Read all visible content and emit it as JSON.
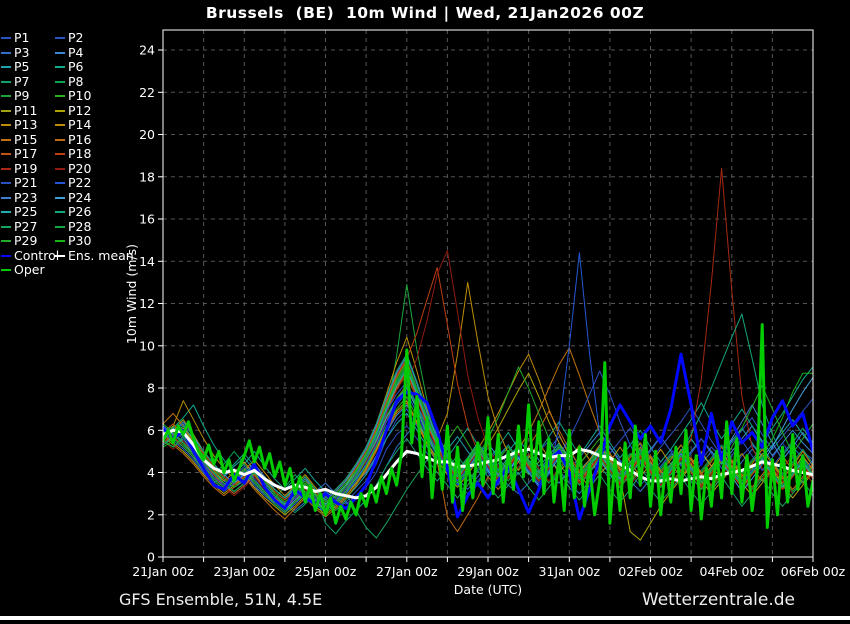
{
  "title": "Brussels  (BE)  10m Wind | Wed, 21Jan2026 00Z",
  "footer": {
    "left": "GFS Ensemble, 51N, 4.5E",
    "right": "Wetterzentrale.de"
  },
  "colors": {
    "background": "#000000",
    "grid": "#555555",
    "axis": "#ffffff",
    "control": "#0008ff",
    "mean": "#ffffff",
    "oper": "#00cc00"
  },
  "chart_data": {
    "type": "line",
    "title": "Brussels  (BE)  10m Wind | Wed, 21Jan2026 00Z",
    "x_axis_title": "Date (UTC)",
    "y_axis_title": "10m Wind (m/s)",
    "ylim": [
      0,
      24
    ],
    "y_ticks": [
      0,
      2,
      4,
      6,
      8,
      10,
      12,
      14,
      16,
      18,
      20,
      22,
      24
    ],
    "x_days_total": 16,
    "x_gridline_every_days": 1,
    "x_tick_labels": [
      "21Jan 00z",
      "23Jan 00z",
      "25Jan 00z",
      "27Jan 00z",
      "29Jan 00z",
      "31Jan 00z",
      "02Feb 00z",
      "04Feb 00z",
      "06Feb 00z"
    ],
    "grid": true,
    "legend_position": "top-left-outside",
    "series": [
      {
        "label": "P1",
        "color": "#2a52c0",
        "width": 1,
        "values": "5.8,5.5,5.9,5.1,4.3,3.7,3.4,3.9,4.1,4.4,3.8,3.2,2.8,3.4,3.1,2.7,3.1,2.8,2.5,2.9,3.3,4.0,5.1,5.8,6.2,5.6,4.9,4.4,4.7,4.2,3.6,4.1,4.6,5.0,4.4,3.9,4.4,5.0,5.5,4.8,4.2,3.6,4.1,4.7,5.2,4.6,3.9,3.4,3.9,4.5,5.1,4.6,4.1,4.6,5.2,4.7,4.2,4.8,5.3,4.8,4.3,4.9,5.5,5.0,4.6"
      },
      {
        "label": "P2",
        "color": "#2a52c0",
        "width": 1,
        "values": "6.0,5.6,5.4,4.8,4.0,3.5,3.8,4.2,3.7,3.3,3.0,2.6,2.3,2.9,3.3,2.9,2.5,2.2,2.6,3.1,3.6,4.4,5.6,6.5,7.0,6.2,5.4,4.7,4.1,3.5,3.0,3.6,4.2,4.8,5.3,4.6,4.0,4.5,5.1,5.7,5.0,4.3,3.7,4.3,4.9,5.5,6.1,5.3,4.6,5.2,5.8,6.4,7.1,6.3,5.5,4.8,5.4,6.0,6.6,5.8,5.1,5.7,6.3,6.9,7.5"
      },
      {
        "label": "P3",
        "color": "#2e6fca",
        "width": 1,
        "values": "5.6,5.9,6.3,5.4,4.6,4.0,3.6,3.3,3.6,4.0,3.5,3.0,2.6,2.2,2.6,3.1,3.5,3.0,2.6,2.2,2.7,3.4,4.3,5.2,5.8,6.4,5.7,5.0,4.3,3.7,3.2,3.8,4.4,3.9,3.4,3.0,3.5,4.1,4.7,4.1,3.5,3.0,3.6,4.2,4.8,4.2,3.6,3.1,3.7,4.3,4.9,4.4,3.8,4.4,5.0,4.5,3.9,4.5,5.1,4.6,4.0,4.6,5.2,4.7,4.2"
      },
      {
        "label": "P4",
        "color": "#3a86d2",
        "width": 1,
        "values": "6.2,5.8,5.5,5.0,4.4,3.8,3.4,3.0,3.4,3.8,3.3,2.9,2.5,2.8,3.2,2.8,2.4,2.7,3.1,3.5,4.0,4.8,5.9,6.7,7.2,6.4,5.6,4.9,4.2,3.6,4.2,4.8,5.4,4.7,4.1,4.6,5.2,4.6,4.0,3.5,4.1,4.7,5.3,5.9,5.2,4.5,3.9,4.5,5.1,5.7,5.0,4.4,5.0,5.6,5.0,4.4,5.0,5.6,6.2,5.5,4.8,5.4,6.0,5.4,4.9"
      },
      {
        "label": "P5",
        "color": "#1ba3ae",
        "width": 1,
        "values": "5.4,5.7,6.1,5.6,4.8,4.2,3.8,4.3,4.7,4.1,3.6,3.1,2.7,3.2,3.6,3.1,2.7,2.3,2.8,3.3,3.9,4.7,5.6,6.3,6.8,6.0,5.2,4.5,5.1,5.7,5.0,4.4,3.8,4.4,5.0,5.6,4.9,4.3,4.8,5.4,4.7,4.1,4.6,5.2,4.6,4.0,4.5,5.1,4.5,3.9,4.4,5.0,5.6,4.9,4.3,4.9,5.5,6.1,5.4,4.7,5.3,5.9,6.5,5.8,5.2"
      },
      {
        "label": "P6",
        "color": "#0fa98c",
        "width": 1,
        "values": "5.7,6.1,6.6,7.2,6.2,5.3,4.6,4.0,4.4,5.0,4.3,3.7,3.2,3.7,4.2,3.6,3.1,2.6,3.1,3.7,4.4,5.3,6.4,7.4,8.2,7.2,6.2,5.4,4.7,5.4,6.1,5.3,4.6,5.2,5.9,5.1,4.4,5.0,5.7,6.4,5.6,4.8,5.5,6.2,5.4,4.7,5.3,6.0,5.2,4.5,5.1,5.8,6.5,7.3,6.4,5.6,6.3,7.0,6.2,5.4,6.1,6.8,7.6,8.4,9.0"
      },
      {
        "label": "P7",
        "color": "#0da26b",
        "width": 1,
        "values": "5.5,5.2,5.6,5.0,4.4,3.9,3.5,3.1,3.5,3.9,3.4,2.9,2.5,2.1,2.5,3.0,1.6,1.1,1.7,2.2,2.7,3.4,4.3,5.0,5.6,4.9,4.2,3.6,4.2,4.8,4.1,3.5,4.1,4.7,5.3,4.6,3.9,4.5,5.1,4.4,3.8,4.4,5.0,4.3,3.7,4.3,4.9,4.2,3.6,4.2,4.8,4.1,3.5,4.1,4.7,5.3,4.6,4.0,4.6,5.2,4.5,3.9,4.5,5.1,4.4"
      },
      {
        "label": "P8",
        "color": "#0aa455",
        "width": 1,
        "values": "5.9,6.2,5.8,5.2,4.5,3.9,4.4,5.0,4.4,3.8,3.3,2.8,3.3,3.9,3.3,2.8,2.3,2.8,3.4,4.1,4.9,5.9,7.1,8.2,9.0,7.8,6.6,5.6,4.8,4.1,4.7,5.4,4.7,4.0,4.6,5.3,4.6,3.9,4.5,5.2,4.5,3.8,4.4,5.1,4.4,3.8,4.4,5.0,4.3,3.7,4.3,5.0,4.3,3.7,4.3,4.9,4.2,3.6,4.2,4.8,4.1,3.5,4.1,4.7,4.0"
      },
      {
        "label": "P9",
        "color": "#1ca63a",
        "width": 1,
        "values": "5.3,5.6,6.0,5.5,4.9,4.3,3.8,3.4,3.8,4.3,3.7,3.1,2.7,3.1,3.6,3.1,2.6,2.2,2.7,3.4,4.2,5.3,6.8,9.5,12.9,9.8,7.4,5.8,4.9,4.2,3.6,4.2,4.9,4.2,3.6,4.2,4.8,4.1,3.5,4.1,4.8,4.1,3.5,4.2,4.8,4.1,3.5,4.1,4.7,4.0,3.4,4.0,4.6,3.9,3.3,3.9,4.5,3.8,3.2,3.8,4.4,3.7,3.1,3.7,4.3"
      },
      {
        "label": "P10",
        "color": "#2fae1f",
        "width": 1,
        "values": "6.1,5.7,5.3,4.8,4.2,3.6,3.2,3.6,4.0,3.5,3.0,2.5,2.1,2.6,3.0,2.6,2.1,2.5,3.0,3.6,4.3,5.2,6.2,7.0,7.6,6.6,5.6,4.8,5.5,6.2,5.4,4.6,4.0,4.6,5.2,4.5,3.9,4.5,5.1,4.4,3.8,4.4,5.0,5.6,4.9,4.2,4.8,5.4,4.7,4.1,4.7,5.3,4.6,4.0,4.6,5.2,4.5,3.9,4.5,5.1,4.4,3.8,4.4,5.0,4.3"
      },
      {
        "label": "P11",
        "color": "#a3a312",
        "width": 1,
        "values": "5.6,6.0,6.5,5.8,5.0,4.4,3.9,3.5,3.9,4.4,3.8,3.2,2.8,3.3,3.8,3.2,2.7,3.1,3.6,4.2,5.0,6.0,7.2,8.0,8.6,7.5,6.4,5.5,4.7,4.0,4.6,5.3,4.6,3.9,4.5,5.2,4.5,3.8,4.4,5.1,4.4,3.8,4.4,5.0,4.3,3.7,4.3,4.9,4.2,3.6,4.2,4.8,4.1,3.5,4.1,4.7,4.0,3.4,4.0,4.6,3.9,3.3,3.9,4.5,3.8"
      },
      {
        "label": "P12",
        "color": "#b0a405",
        "width": 1,
        "values": "5.8,5.4,5.0,4.5,3.9,3.4,3.0,3.4,3.9,3.3,2.8,2.4,2.0,2.4,2.9,2.4,2.0,2.4,2.9,3.5,4.2,5.1,6.1,6.9,7.4,6.4,5.4,4.6,3.9,3.3,3.9,4.6,5.3,6.1,7.0,7.9,8.7,7.6,6.4,5.4,4.6,3.9,3.3,3.9,4.5,3.8,1.2,0.8,1.6,2.4,3.1,3.7,4.3,3.6,3.0,3.6,4.2,3.5,2.9,3.5,4.1,3.4,2.8,3.4,4.0"
      },
      {
        "label": "P13",
        "color": "#bb8e06",
        "width": 1,
        "values": "5.5,6.2,7.4,6.5,5.6,4.8,4.2,3.7,4.1,4.6,4.0,3.4,2.9,3.4,3.9,3.3,2.8,3.2,3.7,4.4,5.2,6.3,7.7,9.2,10.4,8.8,7.0,5.6,6.8,9.6,13.0,10.2,7.6,6.0,4.9,4.1,4.7,5.4,4.7,4.0,4.6,5.3,4.6,3.9,4.5,5.2,4.5,3.8,4.4,5.1,4.4,3.8,4.4,5.0,4.3,3.7,4.3,4.9,4.2,3.6,4.2,4.8,4.1,3.5,4.1"
      },
      {
        "label": "P14",
        "color": "#c28a0a",
        "width": 1,
        "values": "6.0,5.6,6.1,5.4,4.7,4.1,3.6,4.0,4.5,3.9,3.3,2.8,2.4,2.9,3.4,2.9,2.4,2.8,3.3,4.0,4.8,5.8,7.0,8.1,8.9,7.7,6.4,5.3,4.5,3.8,4.4,5.1,5.9,6.8,7.8,8.8,9.6,8.4,7.0,5.8,4.8,4.0,4.6,5.3,4.6,3.9,4.5,5.2,4.5,3.8,4.4,5.1,4.4,3.7,4.3,5.0,4.3,3.6,4.2,4.9,4.2,3.5,4.1,4.8,4.1"
      },
      {
        "label": "P15",
        "color": "#c1720d",
        "width": 1,
        "values": "6.3,6.8,6.2,5.5,4.8,4.2,3.7,3.3,3.7,4.2,3.6,3.0,2.6,3.0,3.5,3.0,2.5,2.9,3.4,4.1,4.9,6.0,7.3,8.5,9.3,8.0,6.6,5.4,4.6,3.9,4.5,5.2,4.5,3.8,4.4,5.1,5.9,6.9,8.0,9.1,9.9,8.6,7.2,5.9,4.9,4.1,4.7,5.4,4.7,4.0,4.6,5.3,4.6,3.9,4.5,5.2,4.5,3.8,4.4,5.1,4.4,3.7,4.3,5.0,4.3"
      },
      {
        "label": "P16",
        "color": "#c26a10",
        "width": 1,
        "values": "5.7,5.3,4.9,4.4,3.8,3.3,2.9,3.3,3.8,3.2,2.7,2.2,1.8,2.3,2.8,2.3,1.9,2.3,2.8,3.4,4.1,5.0,6.0,6.8,7.3,6.3,5.3,4.5,1.9,1.2,2.0,2.8,3.8,3.2,3.8,4.5,5.2,6.0,6.9,6.0,5.1,4.3,3.7,4.3,4.9,4.2,3.6,4.2,4.8,4.1,3.5,4.1,4.7,4.0,3.4,4.0,4.6,3.9,3.3,3.9,4.5,3.8,3.2,3.8,4.4"
      },
      {
        "label": "P17",
        "color": "#c25512",
        "width": 1,
        "values": "5.9,6.3,5.7,5.1,4.5,3.9,3.4,3.0,3.4,3.9,3.3,2.8,2.4,2.8,3.3,2.8,2.4,2.8,3.3,3.9,4.7,5.7,6.9,8.0,8.8,7.6,6.3,5.2,4.4,3.7,4.3,5.0,4.3,3.7,4.3,5.0,4.3,3.6,4.2,4.9,4.2,3.6,4.2,4.8,4.1,3.5,4.1,4.8,4.1,3.4,4.0,4.7,4.0,3.4,4.0,4.6,3.9,3.3,3.9,4.5,3.8,3.2,3.8,4.4,3.7"
      },
      {
        "label": "P18",
        "color": "#bb3f10",
        "width": 1,
        "values": "5.4,5.8,6.2,5.6,4.9,4.3,3.8,3.4,3.8,4.3,3.7,3.1,2.7,3.2,3.7,3.1,2.6,3.0,3.5,4.2,5.0,6.1,7.4,8.6,9.4,10.6,12.2,13.7,11.0,8.2,6.2,5.0,4.2,3.6,4.2,4.9,4.2,3.6,4.2,4.9,4.2,3.5,4.1,4.8,4.1,3.5,4.1,4.7,4.0,3.4,4.0,4.7,4.0,3.3,3.9,4.6,3.9,3.3,3.9,4.5,3.8,3.2,3.8,4.4,3.7"
      },
      {
        "label": "P19",
        "color": "#a82812",
        "width": 1,
        "values": "6.1,5.7,5.2,4.7,4.1,3.6,3.2,3.6,4.1,3.5,3.0,2.6,2.2,2.7,3.2,2.7,2.2,2.6,3.1,3.8,4.6,5.6,6.8,7.9,8.7,7.5,6.2,5.1,4.3,3.7,4.3,5.0,4.3,3.6,4.2,4.9,4.2,3.6,4.2,4.8,4.1,3.5,4.1,4.8,4.1,3.4,4.0,4.7,4.0,3.4,4.0,4.6,5.6,8.4,13.0,18.4,12.6,7.6,5.2,4.2,3.6,4.2,4.8,4.1,3.5"
      },
      {
        "label": "P20",
        "color": "#8f1a10",
        "width": 1,
        "values": "5.5,5.1,5.5,4.9,4.3,3.8,3.3,2.9,3.3,3.8,3.2,2.7,2.3,2.7,3.2,2.7,2.3,2.7,3.2,3.8,4.5,5.4,6.5,7.5,8.2,9.4,11.2,13.4,14.5,11.6,8.6,6.6,5.2,4.3,3.7,4.3,4.9,4.2,3.6,4.2,4.8,4.1,3.5,4.1,4.7,4.0,3.4,4.0,4.6,3.9,3.3,3.9,4.5,3.8,3.2,3.8,4.4,3.7,3.1,3.7,4.3,3.6,3.0,3.6,4.2"
      },
      {
        "label": "P21",
        "color": "#2a52c0",
        "width": 1,
        "values": "5.7,6.0,5.6,5.0,4.4,3.8,3.4,3.8,4.3,3.7,3.1,2.7,2.3,2.8,3.3,2.8,2.3,2.7,3.2,3.9,4.7,5.7,6.9,7.7,8.3,7.2,6.0,5.0,4.2,3.6,4.2,4.9,4.2,3.5,4.1,4.8,4.1,3.5,4.1,4.8,5.6,6.6,7.7,8.8,7.7,6.4,5.3,4.4,5.0,5.7,5.0,4.3,4.9,5.6,4.9,4.2,4.8,5.5,4.8,4.1,4.7,5.4,4.7,4.0,4.6"
      },
      {
        "label": "P22",
        "color": "#2456d6",
        "width": 1,
        "values": "5.9,5.5,5.1,4.6,4.0,3.5,3.1,3.5,4.0,3.4,2.9,2.5,2.1,2.5,3.0,2.5,2.1,2.5,3.0,3.6,4.4,5.3,6.4,7.2,7.8,6.8,5.7,4.8,4.0,3.4,4.0,4.7,4.0,3.4,4.0,4.7,4.0,3.3,3.9,6.2,10.0,14.4,9.6,5.8,4.4,3.7,4.3,5.0,4.3,3.6,4.2,4.9,4.2,3.6,4.2,4.8,4.1,3.5,4.1,4.7,4.0,3.4,4.0,4.6,3.9"
      },
      {
        "label": "P23",
        "color": "#3f7fd0",
        "width": 1,
        "values": "5.6,5.9,6.4,5.7,5.0,4.4,3.9,3.5,3.9,4.4,3.8,3.2,2.8,3.2,3.7,3.2,2.7,3.1,3.6,4.3,5.1,6.2,7.5,8.7,9.5,8.2,6.8,5.6,4.7,4.0,4.6,5.3,4.6,3.9,4.5,5.2,4.5,3.9,4.5,5.1,4.4,3.8,4.4,5.1,4.4,3.7,4.3,5.0,4.3,3.7,4.3,4.9,4.2,3.6,4.2,4.9,5.6,6.4,7.2,6.3,5.4,4.6,5.2,5.9,5.2"
      },
      {
        "label": "P24",
        "color": "#3fa0d8",
        "width": 1,
        "values": "6.2,5.8,5.4,4.9,4.3,3.7,3.3,3.7,4.2,3.6,3.1,2.6,2.2,2.7,3.1,2.7,2.2,2.6,3.1,3.8,4.6,5.5,6.6,7.4,8.0,7.0,5.8,4.9,4.1,3.5,4.1,4.8,4.1,3.5,4.1,4.7,4.0,3.4,4.0,4.7,4.0,3.4,4.0,4.6,3.9,3.3,3.9,4.6,3.9,3.3,3.9,4.5,3.8,3.2,3.8,4.5,3.8,3.1,3.7,4.4,5.2,6.1,7.0,7.8,8.5"
      },
      {
        "label": "P25",
        "color": "#1fadad",
        "width": 1,
        "values": "5.8,6.1,5.7,5.2,4.6,4.0,3.5,3.1,3.5,4.0,3.4,2.9,2.5,2.9,3.4,2.9,2.5,2.9,3.4,4.0,4.8,5.8,7.0,8.1,8.9,7.7,6.4,5.3,4.5,3.8,4.4,5.1,4.4,3.8,4.4,5.1,4.4,3.7,4.3,5.0,4.3,3.7,4.3,4.9,4.2,3.6,4.2,4.9,4.2,3.5,4.1,4.8,4.1,3.5,4.1,4.7,4.0,3.4,4.0,4.6,3.9,3.3,3.9,4.5,3.8"
      },
      {
        "label": "P26",
        "color": "#12a87e",
        "width": 1,
        "values": "5.3,5.7,6.2,5.6,5.0,4.4,3.9,4.4,4.9,4.3,3.7,3.2,2.8,3.3,3.8,3.2,2.8,3.2,3.7,4.4,5.2,6.3,7.6,8.8,9.6,8.3,6.9,5.7,4.8,4.1,4.7,5.4,4.7,4.1,4.7,5.3,4.6,4.0,4.6,5.3,4.6,3.9,4.5,5.2,4.5,3.9,4.5,5.1,4.4,3.8,4.4,5.0,5.8,6.8,8.0,9.2,10.4,11.5,9.4,7.2,5.8,4.8,5.4,6.1,5.4"
      },
      {
        "label": "P27",
        "color": "#15a55e",
        "width": 1,
        "values": "6.0,5.6,5.2,4.7,4.1,3.6,3.2,3.6,4.1,3.5,3.0,2.5,2.1,2.6,3.0,2.6,2.1,2.5,3.0,2.2,1.4,0.9,1.6,2.4,3.2,3.9,4.6,4.0,3.4,2.8,3.4,4.1,3.4,2.8,3.4,4.0,3.3,2.7,3.3,4.0,3.3,2.7,3.3,3.9,3.2,2.6,3.2,3.9,3.2,2.6,3.2,3.8,3.1,2.5,3.1,3.8,3.1,2.4,3.0,3.7,3.0,2.4,3.0,3.6,2.9"
      },
      {
        "label": "P28",
        "color": "#12a647",
        "width": 1,
        "values": "5.5,5.2,5.7,5.1,4.5,4.0,3.5,3.1,3.5,4.0,3.4,2.9,2.4,2.9,3.4,2.9,2.4,2.8,3.3,4.0,4.8,5.9,7.1,8.3,9.1,7.9,6.5,5.4,4.6,3.9,4.5,5.2,4.5,3.8,4.4,5.1,4.4,3.8,4.4,5.0,4.3,3.7,4.3,5.0,4.3,3.6,4.2,4.9,4.2,3.6,4.2,4.8,4.1,3.5,4.1,4.8,4.1,3.4,4.0,4.7,4.0,3.4,4.0,4.6,3.9"
      },
      {
        "label": "P29",
        "color": "#22aa2b",
        "width": 1,
        "values": "6.3,5.9,5.4,4.9,4.3,3.7,3.3,3.7,4.2,3.6,3.1,2.6,2.2,2.6,3.1,2.6,2.2,2.6,3.1,3.8,4.6,5.6,6.7,7.5,8.1,7.1,5.9,4.9,4.1,3.5,4.1,4.8,5.6,6.6,7.8,9.0,8.0,6.8,5.6,4.7,4.0,3.4,4.0,4.7,4.0,3.3,3.9,4.6,3.9,3.3,3.9,4.5,3.8,3.2,3.8,4.5,5.2,6.1,7.1,8.1,7.0,5.9,4.9,5.6,6.3"
      },
      {
        "label": "P30",
        "color": "#17b317",
        "width": 1,
        "values": "5.2,5.5,6.0,5.4,4.8,4.2,3.7,3.3,3.7,4.2,3.6,3.0,2.6,3.0,3.5,3.0,2.6,3.0,3.5,4.1,4.9,5.9,7.2,8.4,9.2,8.0,6.6,5.5,4.7,4.0,4.6,5.3,4.6,4.0,4.6,5.2,4.5,3.9,4.5,5.2,4.5,3.8,4.4,5.1,4.4,3.8,4.4,5.0,4.3,3.7,4.3,5.0,4.3,3.6,4.2,4.9,4.2,3.6,4.2,4.8,5.6,6.6,7.8,8.7,8.7"
      },
      {
        "label": "Control",
        "color": "#0008ff",
        "width": 3,
        "values": "6.1,5.6,6.0,5.0,4.2,3.4,3.2,3.9,3.5,4.4,3.3,2.7,2.3,3.2,2.8,2.5,3.0,2.6,2.3,2.8,3.4,4.6,6.0,7.4,7.8,7.7,7.3,6.0,4.2,1.9,2.9,3.5,2.8,3.6,4.3,3.2,2.1,3.2,4.6,5.0,4.0,1.8,3.2,4.6,6.2,7.2,6.4,5.6,6.2,5.4,7.0,9.6,7.2,4.4,6.8,4.6,6.4,5.4,5.9,5.2,6.6,7.4,6.2,6.8,5.0"
      },
      {
        "label": "Ens. mean",
        "color": "#ffffff",
        "width": 3,
        "values": "5.8,6.0,5.9,5.3,4.6,4.2,4.0,4.1,3.9,4.1,3.7,3.4,3.2,3.4,3.3,3.1,3.2,3.0,2.9,2.8,2.9,3.3,3.9,4.5,5.0,4.9,4.7,4.5,4.5,4.3,4.3,4.4,4.5,4.6,4.8,5.0,5.1,4.9,4.7,4.8,4.8,5.1,5.0,4.8,4.7,4.4,4.1,3.8,3.6,3.6,3.7,3.6,3.7,3.8,3.7,3.9,4.0,4.1,4.3,4.5,4.4,4.3,4.1,4.0,3.9"
      },
      {
        "label": "Oper",
        "color": "#00cc00",
        "width": 3,
        "values": "5.5,6.0,5.4,6.2,5.8,6.4,5.6,5.0,4.6,5.3,4.4,5.0,4.0,4.6,3.6,4.2,4.8,5.5,4.5,5.2,4.2,4.9,3.8,4.5,3.4,4.2,3.0,3.8,2.6,3.4,2.2,3.0,2.0,2.8,1.6,2.4,1.8,2.6,2.0,3.0,2.4,3.4,2.6,3.8,3.0,4.2,3.4,5.0,9.8,5.4,7.6,3.8,6.6,2.8,5.6,3.2,6.2,2.6,5.2,2.2,4.6,2.8,5.4,3.4,6.6,3.0,5.8,2.6,5.0,3.2,6.2,3.8,7.2,3.6,6.4,3.0,5.6,2.6,4.8,2.2,6.0,2.8,5.2,2.4,4.4,2.0,3.6,9.2,1.6,4.6,2.2,5.4,2.8,6.2,3.4,5.8,2.4,5.0,2.0,4.4,2.6,5.2,3.0,6.0,2.2,4.8,1.8,4.2,2.4,5.0,2.8,6.4,3.0,5.6,2.6,4.8,2.2,4.0,11.0,1.4,4.6,2.0,5.2,2.6,5.8,3.2,4.8,2.4,3.6"
      }
    ]
  }
}
